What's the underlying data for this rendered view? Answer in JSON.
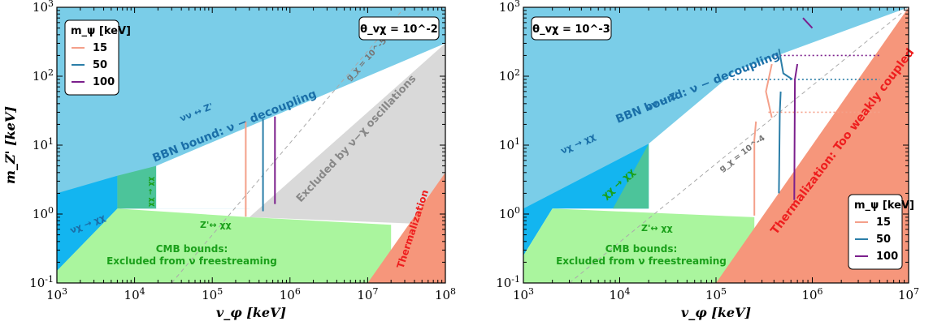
{
  "chart_data": [
    {
      "type": "area",
      "xscale": "log",
      "yscale": "log",
      "xlim": [
        1000,
        100000000
      ],
      "ylim": [
        0.1,
        1000
      ],
      "xlabel": "v_φ [keV]",
      "ylabel": "m_Z' [keV]",
      "x_ticks": [
        "10^3",
        "10^4",
        "10^5",
        "10^6",
        "10^7",
        "10^8"
      ],
      "y_ticks": [
        "10^-1",
        "10^0",
        "10^1",
        "10^2",
        "10^3"
      ],
      "theta_label": "θ_vχ = 10^-2",
      "legend_title": "m_ψ [keV]",
      "legend_position": "top-left",
      "series": [
        {
          "name": "15",
          "color": "#f4a08a",
          "x": [
            270000,
            270000
          ],
          "y": [
            0.92,
            22
          ]
        },
        {
          "name": "50",
          "color": "#2b7ea8",
          "x": [
            450000,
            450000
          ],
          "y": [
            1.1,
            24
          ]
        },
        {
          "name": "100",
          "color": "#7b1f8c",
          "x": [
            640000,
            640000
          ],
          "y": [
            1.4,
            26
          ]
        }
      ],
      "region_labels": {
        "bbn_process": "νν ↔ Z'",
        "bbn": "BBN bound: ν − decoupling",
        "decay": "νχ → χχ",
        "dark": "χχ → χχ",
        "zxx": "Z'↔ χχ",
        "cmb1": "CMB bounds:",
        "cmb2": "Excluded from ν freestreaming",
        "osc": "Excluded by ν−χ oscillations",
        "therm": "Thermalization",
        "g": "g_χ = 10^-5"
      }
    },
    {
      "type": "area",
      "xscale": "log",
      "yscale": "log",
      "xlim": [
        1000,
        10000000
      ],
      "ylim": [
        0.1,
        1000
      ],
      "xlabel": "v_φ [keV]",
      "ylabel": "m_Z' [keV]",
      "x_ticks": [
        "10^3",
        "10^4",
        "10^5",
        "10^6",
        "10^7"
      ],
      "y_ticks": [
        "10^-1",
        "10^0",
        "10^1",
        "10^2",
        "10^3"
      ],
      "theta_label": "θ_vχ = 10^-3",
      "legend_title": "m_ψ [keV]",
      "legend_position": "bottom-right",
      "series": [
        {
          "name": "15",
          "color": "#f4a08a",
          "x": [
            250000,
            250000,
            260000
          ],
          "y": [
            0.95,
            12,
            22
          ]
        },
        {
          "name": "50",
          "color": "#2b7ea8",
          "x": [
            450000,
            460000,
            470000
          ],
          "y": [
            2,
            30,
            60
          ]
        },
        {
          "name": "100",
          "color": "#7b1f8c",
          "x": [
            650000,
            660000,
            700000
          ],
          "y": [
            1.6,
            90,
            150
          ]
        }
      ],
      "region_labels": {
        "bbn_process": "νν ↔ Z'",
        "bbn": "BBN bound: ν − decoupling",
        "decay": "νχ → χχ",
        "dark": "χχ → χχ",
        "zxx": "Z'↔ χχ",
        "cmb1": "CMB bounds:",
        "cmb2": "Excluded from ν freestreaming",
        "therm": "Thermalization: Too weakly coupled",
        "g": "g_χ = 10^-4"
      }
    }
  ],
  "legend_items": [
    "15",
    "50",
    "100"
  ],
  "colors": {
    "bbn": "#7acde8",
    "decay": "#13b5f0",
    "dark": "#4cc49a",
    "cmb": "#aaf59e",
    "osc": "#d9d9d9",
    "therm": "#f6967b"
  }
}
